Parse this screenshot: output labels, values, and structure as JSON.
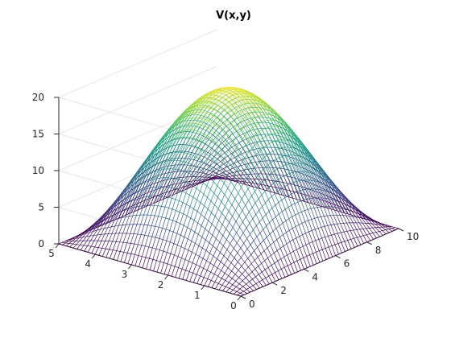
{
  "chart_data": {
    "type": "surface",
    "title": "V(x,y)",
    "function": "20*sin(pi*x/10)*sin(pi*y/5)",
    "x": {
      "min": 0,
      "max": 10,
      "ticks": [
        0,
        2,
        4,
        6,
        8,
        10
      ],
      "tick_labels": [
        "0",
        "2",
        "4",
        "6",
        "8",
        "10"
      ]
    },
    "y": {
      "min": 0,
      "max": 5,
      "ticks": [
        0,
        1,
        2,
        3,
        4,
        5
      ],
      "tick_labels": [
        "0",
        "1",
        "2",
        "3",
        "4",
        "5"
      ]
    },
    "z": {
      "min": 0,
      "max": 20,
      "ticks": [
        0,
        5,
        10,
        15,
        20
      ],
      "tick_labels": [
        "0",
        "5",
        "10",
        "15",
        "20"
      ]
    },
    "mesh": {
      "nx": 50,
      "ny": 50
    },
    "peak": {
      "x": 5,
      "y": 2.5,
      "z": 20
    },
    "colormap": "viridis",
    "grid": true,
    "xlabel": "",
    "ylabel": "",
    "zlabel": ""
  }
}
